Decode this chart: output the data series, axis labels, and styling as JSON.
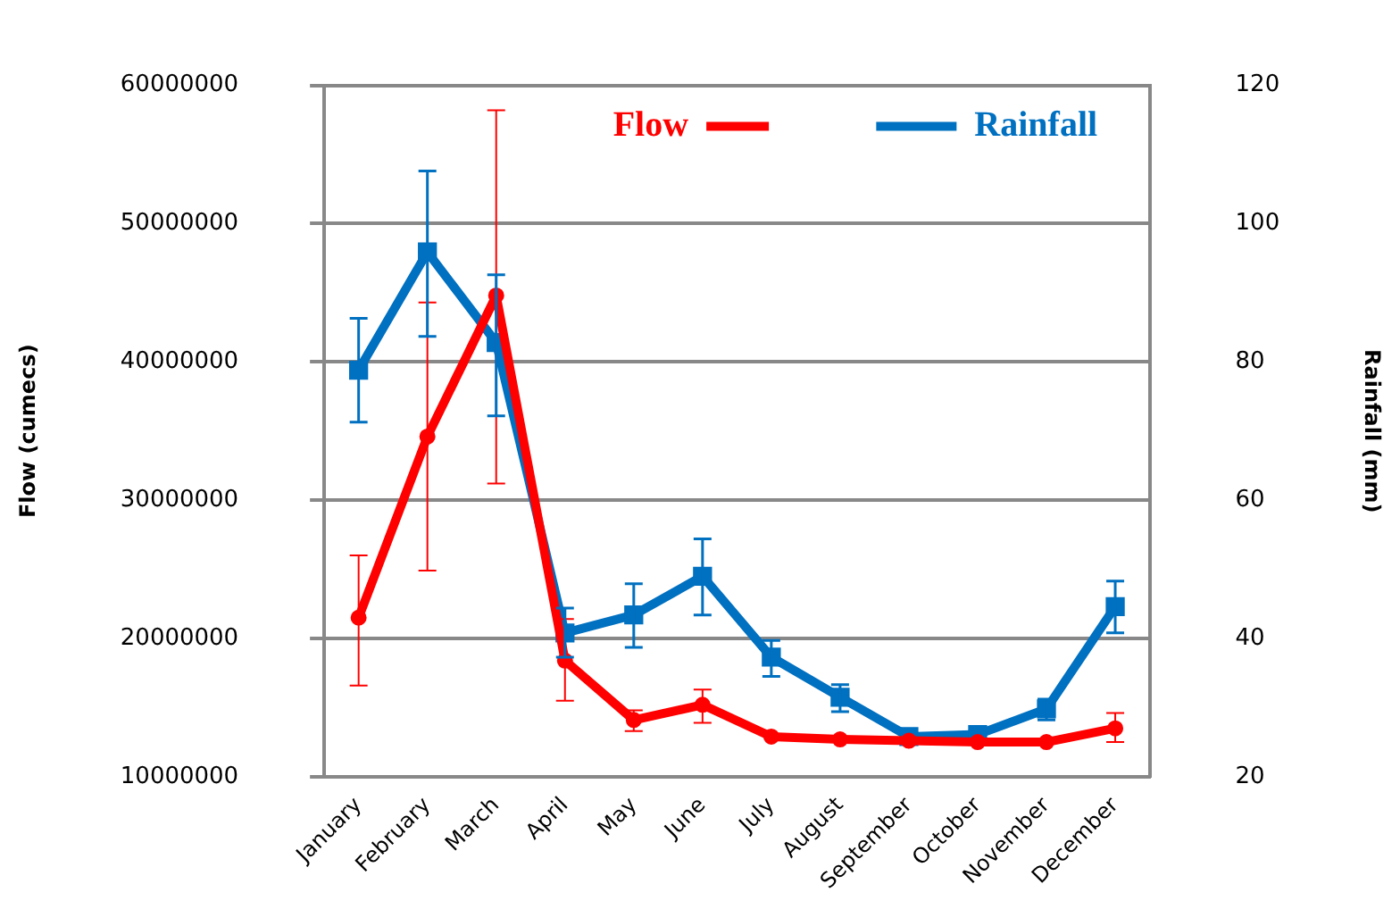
{
  "chart_data": {
    "type": "line",
    "categories": [
      "January",
      "February",
      "March",
      "April",
      "May",
      "June",
      "July",
      "August",
      "September",
      "October",
      "November",
      "December"
    ],
    "series": [
      {
        "name": "Flow",
        "color": "#ff0000",
        "axis": "y",
        "marker": "circle",
        "values": [
          21500000,
          34600000,
          44800000,
          18400000,
          14100000,
          15200000,
          12900000,
          12700000,
          12600000,
          12500000,
          12500000,
          13500000
        ],
        "errors": [
          [
            16600000,
            26000000
          ],
          [
            24900000,
            44300000
          ],
          [
            31200000,
            58200000
          ],
          [
            15500000,
            21400000
          ],
          [
            13300000,
            14800000
          ],
          [
            13900000,
            16300000
          ],
          null,
          null,
          null,
          null,
          null,
          [
            12500000,
            14600000
          ]
        ]
      },
      {
        "name": "Rainfall",
        "color": "#0070c0",
        "axis": "y2",
        "marker": "square",
        "values": [
          78.8,
          95.9,
          82.8,
          40.8,
          43.4,
          49.0,
          37.3,
          31.5,
          25.8,
          26.1,
          29.8,
          44.6
        ],
        "errors": [
          [
            71.3,
            86.3
          ],
          [
            83.7,
            107.6
          ],
          [
            72.2,
            92.6
          ],
          [
            37.3,
            44.4
          ],
          [
            38.7,
            47.9
          ],
          [
            43.4,
            54.4
          ],
          [
            34.5,
            39.7
          ],
          [
            29.4,
            33.3
          ],
          null,
          null,
          [
            28.2,
            31.2
          ],
          [
            40.8,
            48.3
          ]
        ]
      }
    ],
    "ylabel": "Flow (cumecs)",
    "y2label": "Rainfall (mm)",
    "ylim": [
      10000000,
      60000000
    ],
    "yticks": [
      10000000,
      20000000,
      30000000,
      40000000,
      50000000,
      60000000
    ],
    "y2lim": [
      20,
      120
    ],
    "y2ticks": [
      20,
      40,
      60,
      80,
      100,
      120
    ],
    "grid": "y",
    "legend": "top",
    "line_style": "solid"
  }
}
